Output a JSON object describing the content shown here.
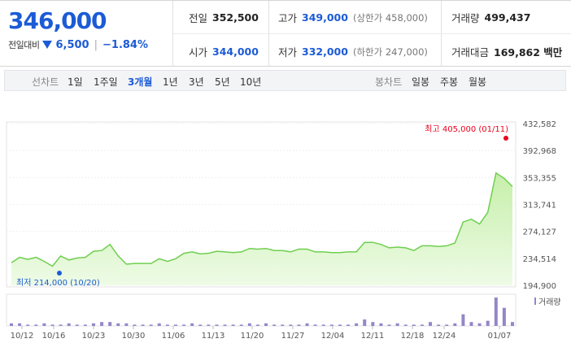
{
  "quote": {
    "price": "346,000",
    "change_label": "전일대비",
    "change": "6,500",
    "change_pct": "−1.84%",
    "separator": "|"
  },
  "stats": {
    "prev_close_label": "전일",
    "prev_close": "352,500",
    "high_label": "고가",
    "high": "349,000",
    "upper_limit": "(상한가 458,000)",
    "volume_label": "거래량",
    "volume": "499,437",
    "open_label": "시가",
    "open": "344,000",
    "low_label": "저가",
    "low": "332,000",
    "lower_limit": "(하한가 247,000)",
    "turnover_label": "거래대금",
    "turnover": "169,862 백만"
  },
  "toolbar": {
    "line_label": "선차트",
    "periods": [
      "1일",
      "1주일",
      "3개월",
      "1년",
      "3년",
      "5년",
      "10년"
    ],
    "active_period": "3개월",
    "candle_label": "봉차트",
    "candles": [
      "일봉",
      "주봉",
      "월봉"
    ]
  },
  "chart_data": {
    "type": "area",
    "y_ticks": [
      "432,582",
      "392,968",
      "353,355",
      "313,741",
      "274,127",
      "234,514",
      "194,900"
    ],
    "ylim": [
      194900,
      432582
    ],
    "x_ticks": [
      "10/12",
      "10/16",
      "10/23",
      "10/30",
      "11/06",
      "11/13",
      "11/20",
      "11/27",
      "12/04",
      "12/11",
      "12/18",
      "12/24",
      "01/07"
    ],
    "max_annotation": "최고 405,000 (01/11)",
    "min_annotation": "최저 214,000 (10/20)",
    "volume_legend": "거래량",
    "colors": {
      "line": "#6fcf4f",
      "fill": "#d9f4c6",
      "max": "#e8001c",
      "min": "#1c5bd6",
      "volume": "#9486c8"
    },
    "values": [
      228000,
      236000,
      233000,
      236000,
      230000,
      223000,
      238000,
      232000,
      235000,
      236000,
      245000,
      246000,
      255000,
      238000,
      226000,
      227000,
      227000,
      227000,
      234000,
      230000,
      234000,
      242000,
      244000,
      241000,
      242000,
      245000,
      244000,
      243000,
      244000,
      249000,
      248000,
      249000,
      246000,
      246000,
      244000,
      248000,
      248000,
      244000,
      244000,
      243000,
      243000,
      244000,
      244000,
      258000,
      258000,
      255000,
      250000,
      251000,
      250000,
      246000,
      253000,
      253000,
      252000,
      253000,
      257000,
      288000,
      292000,
      285000,
      302000,
      360000,
      352000,
      340000
    ],
    "volumes": [
      2,
      2,
      1,
      1,
      2,
      1,
      1,
      2,
      1,
      1,
      2,
      3,
      3,
      2,
      2,
      1,
      1,
      1,
      2,
      1,
      1,
      1,
      2,
      1,
      1,
      1,
      1,
      1,
      1,
      2,
      1,
      2,
      1,
      1,
      1,
      1,
      2,
      1,
      1,
      1,
      1,
      1,
      2,
      5,
      3,
      2,
      1,
      2,
      1,
      1,
      1,
      3,
      1,
      1,
      2,
      9,
      3,
      2,
      4,
      22,
      14,
      3
    ]
  }
}
